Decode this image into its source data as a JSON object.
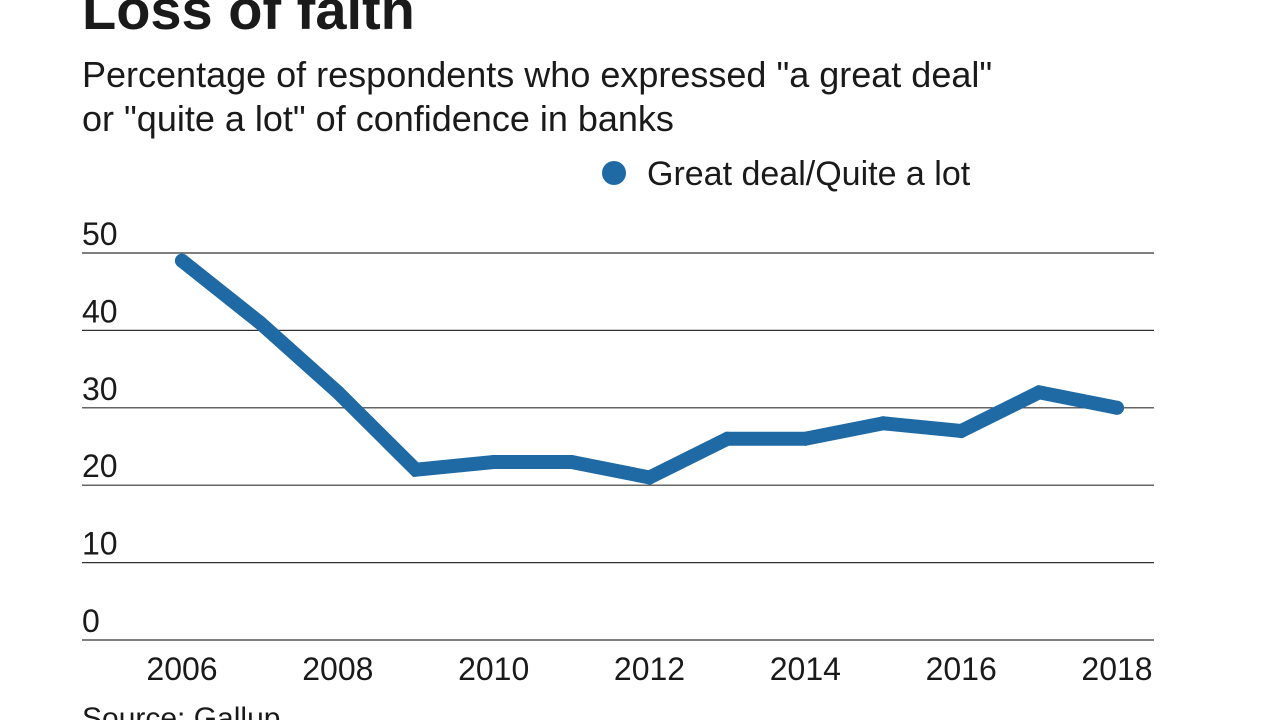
{
  "title": "Loss of faith",
  "subtitle_lines": [
    "Percentage of respondents who expressed \"a great deal\"",
    "or \"quite a lot\" of confidence in banks"
  ],
  "source": "Source: Gallup",
  "colors": {
    "series": "#1f6aa5",
    "grid": "#333333",
    "text": "#1a1a1a"
  },
  "chart_data": {
    "type": "line",
    "title": "Loss of faith",
    "subtitle": "Percentage of respondents who expressed \"a great deal\" or \"quite a lot\" of confidence in banks",
    "xlabel": "",
    "ylabel": "",
    "x": [
      2006,
      2007,
      2008,
      2009,
      2010,
      2011,
      2012,
      2013,
      2014,
      2015,
      2016,
      2017,
      2018
    ],
    "series": [
      {
        "name": "Great deal/Quite a lot",
        "values": [
          49,
          41,
          32,
          22,
          23,
          23,
          21,
          26,
          26,
          28,
          27,
          32,
          30
        ]
      }
    ],
    "xlim": [
      2006,
      2018
    ],
    "ylim": [
      0,
      50
    ],
    "x_ticks": [
      2006,
      2008,
      2010,
      2012,
      2014,
      2016,
      2018
    ],
    "x_tick_labels": [
      "2006",
      "2008",
      "2010",
      "2012",
      "2014",
      "2016",
      "2018"
    ],
    "y_ticks": [
      0,
      10,
      20,
      30,
      40,
      50
    ],
    "y_tick_labels": [
      "0",
      "10",
      "20",
      "30",
      "40",
      "50"
    ],
    "grid": true,
    "legend": {
      "position": "top-center",
      "entries": [
        "Great deal/Quite a lot"
      ]
    }
  }
}
